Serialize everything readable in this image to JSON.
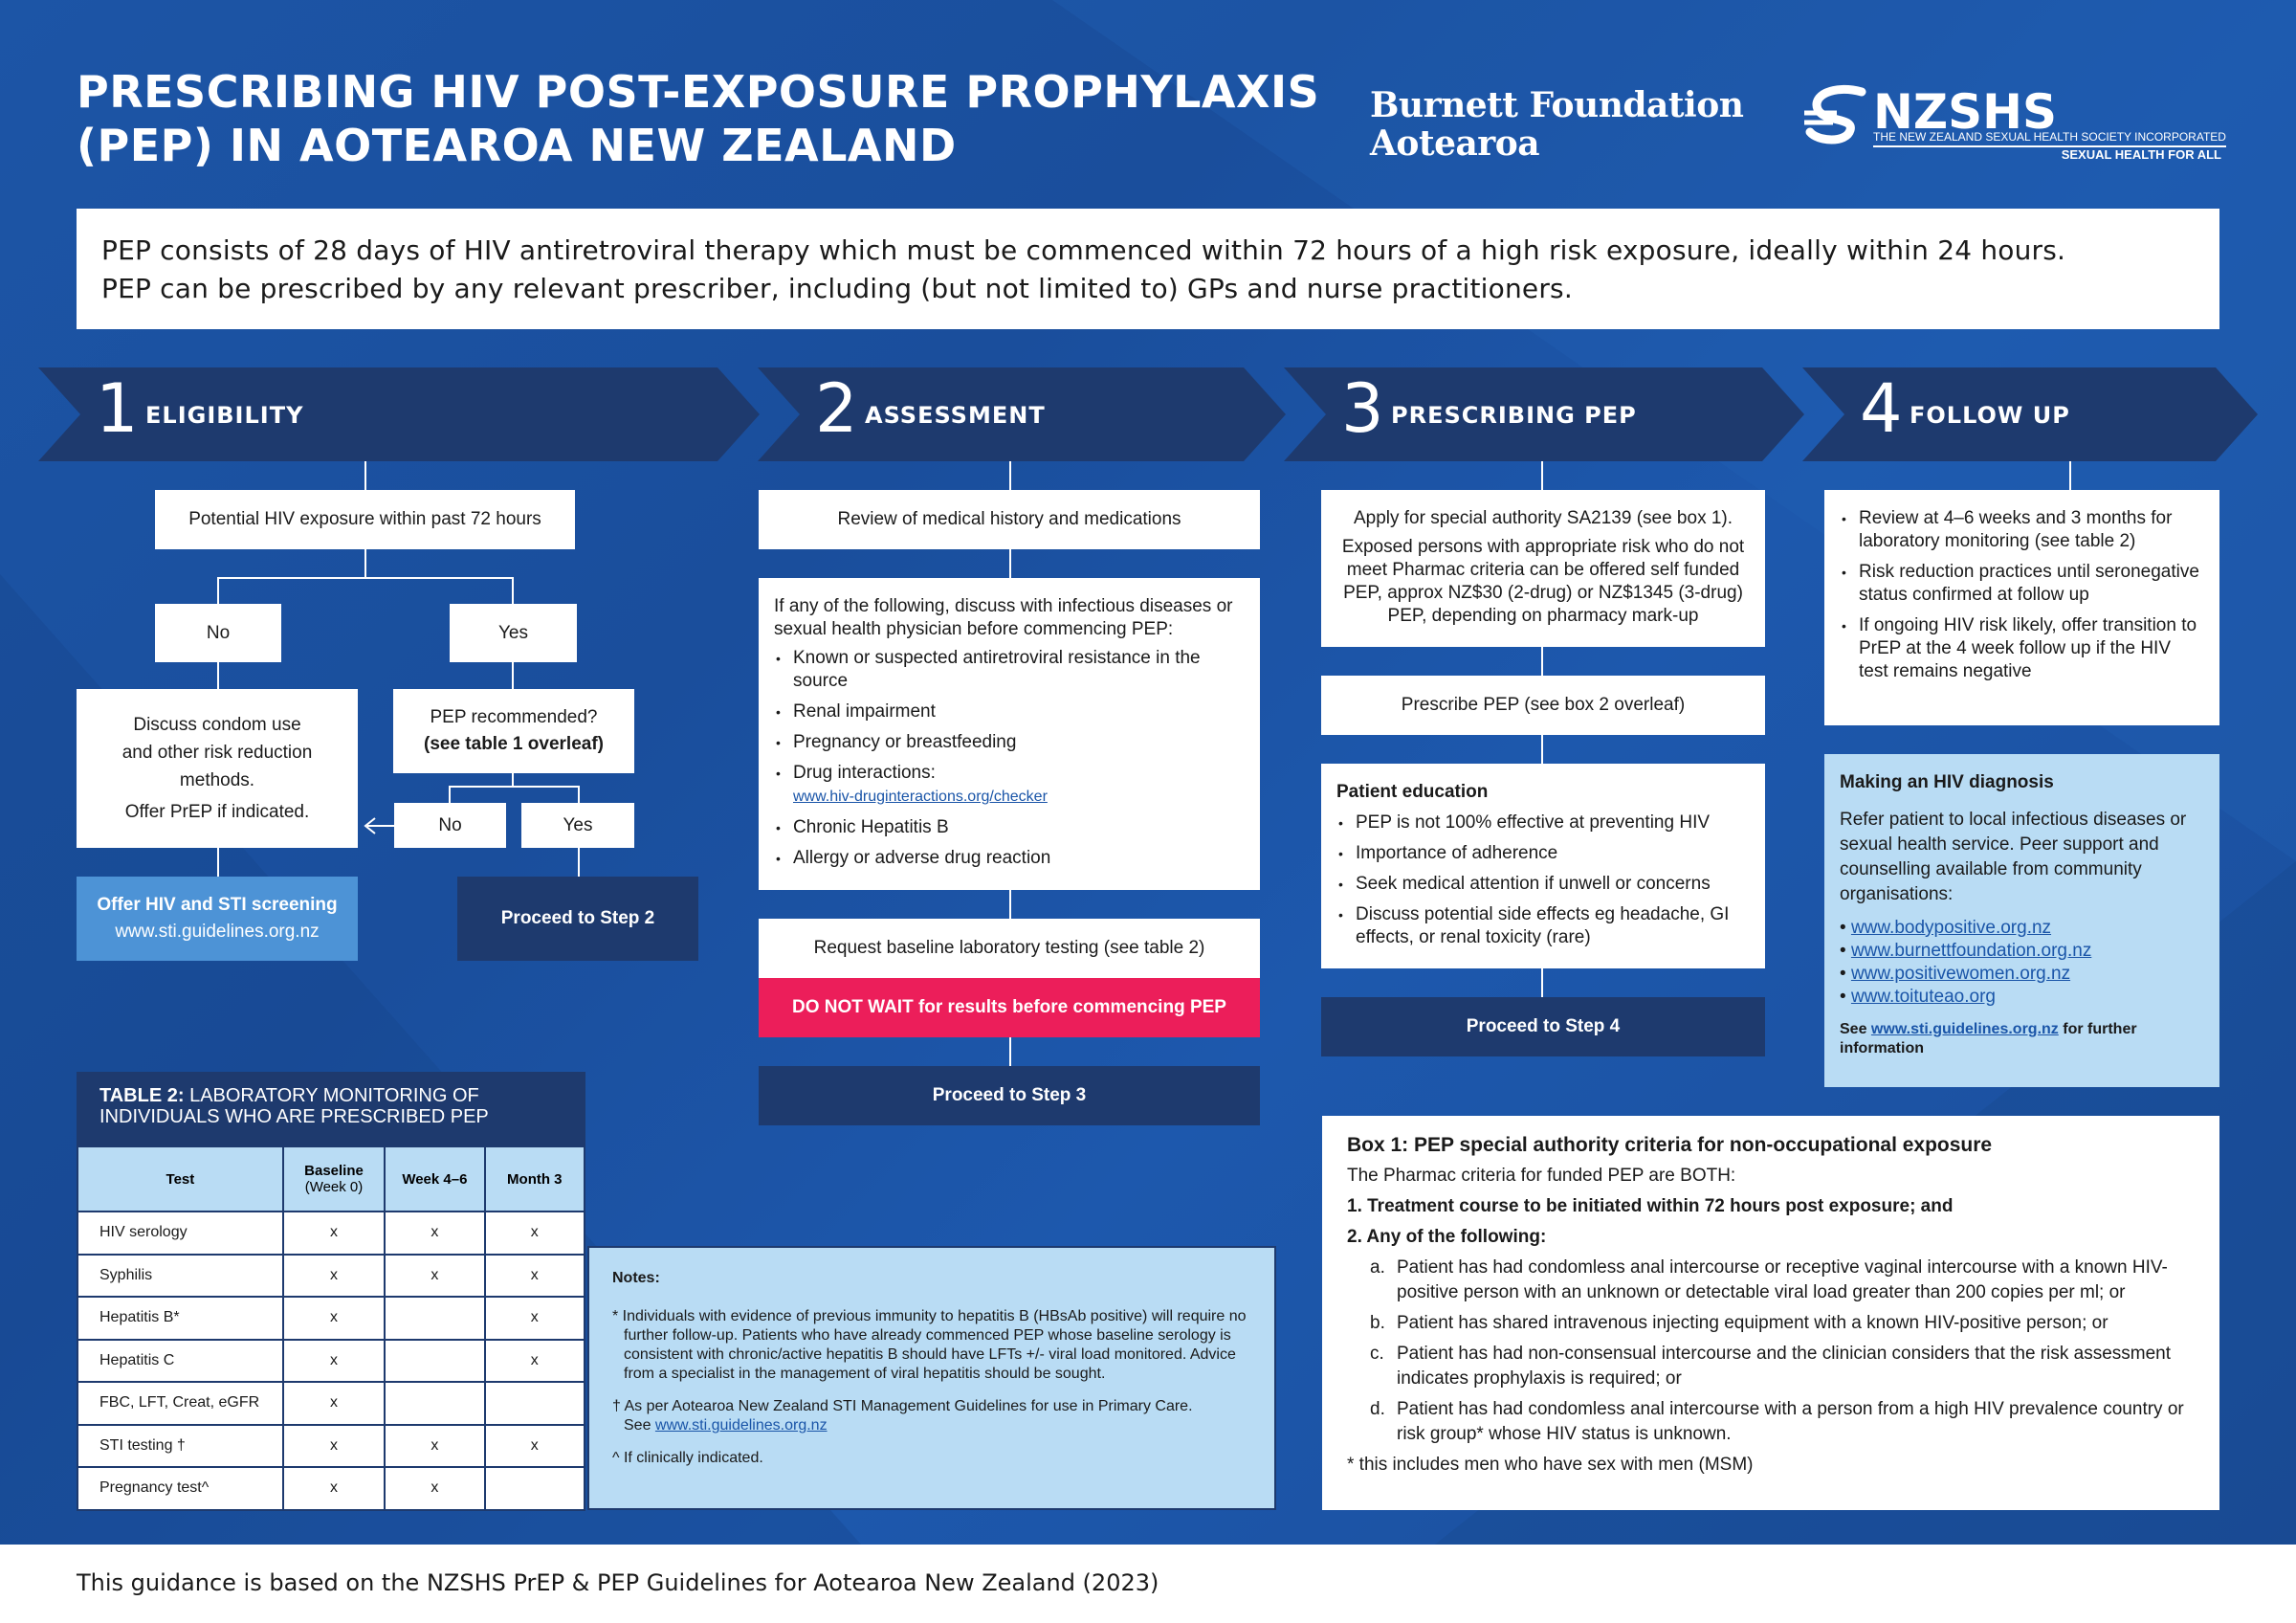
{
  "header": {
    "title_line1": "PRESCRIBING HIV POST-EXPOSURE PROPHYLAXIS",
    "title_line2": "(PEP) IN AOTEAROA NEW ZEALAND",
    "burnett_line1": "Burnett Foundation",
    "burnett_line2": "Aotearoa",
    "nzshs_name": "NZSHS",
    "nzshs_sub": "THE NEW ZEALAND SEXUAL HEALTH SOCIETY INCORPORATED",
    "nzshs_tag": "SEXUAL HEALTH FOR ALL"
  },
  "intro": {
    "line1": "PEP consists of 28 days of HIV antiretroviral therapy which must be commenced within 72 hours of a high risk exposure, ideally within 24 hours.",
    "line2": "PEP can be prescribed by any relevant prescriber, including (but not limited to) GPs and nurse practitioners."
  },
  "steps": [
    {
      "num": "1",
      "label": "ELIGIBILITY"
    },
    {
      "num": "2",
      "label": "ASSESSMENT"
    },
    {
      "num": "3",
      "label": "PRESCRIBING PEP"
    },
    {
      "num": "4",
      "label": "FOLLOW UP"
    }
  ],
  "eligibility": {
    "exposure": "Potential HIV exposure within past 72 hours",
    "no": "No",
    "yes": "Yes",
    "discuss_line1": "Discuss condom use",
    "discuss_line2": "and other risk reduction",
    "discuss_line3": "methods.",
    "discuss_line4": "Offer PrEP if indicated.",
    "pep_rec": "PEP recommended?",
    "pep_rec_bold": "(see table 1 overleaf)",
    "no2": "No",
    "yes2": "Yes",
    "screening": "Offer HIV and STI screening",
    "screening_url": "www.sti.guidelines.org.nz",
    "proceed": "Proceed to Step 2"
  },
  "assessment": {
    "review": "Review of medical history and medications",
    "discuss_intro": "If any of the following, discuss with infectious diseases or sexual health physician before commencing PEP:",
    "items": [
      "Known or suspected antiretroviral resistance in the source",
      "Renal impairment",
      "Pregnancy or breastfeeding",
      "Drug interactions:",
      "Chronic Hepatitis B",
      "Allergy or adverse drug reaction"
    ],
    "drug_link": "www.hiv-druginteractions.org/checker",
    "baseline": "Request baseline laboratory testing (see table 2)",
    "do_not_wait": "DO NOT WAIT for results before commencing PEP",
    "proceed": "Proceed to Step 3"
  },
  "prescribing": {
    "apply": "Apply for special authority SA2139 (see box 1).",
    "exposed": "Exposed persons with appropriate risk who do not meet Pharmac criteria can be offered self funded PEP, approx NZ$30 (2-drug) or NZ$1345 (3-drug) PEP, depending on pharmacy mark-up",
    "prescribe": "Prescribe PEP (see box 2 overleaf)",
    "education_title": "Patient education",
    "education_items": [
      "PEP is not 100% effective at preventing HIV",
      "Importance of adherence",
      "Seek medical attention if unwell or concerns",
      "Discuss potential side effects eg headache, GI effects, or renal toxicity (rare)"
    ],
    "proceed": "Proceed to Step 4"
  },
  "followup": {
    "items": [
      "Review at 4–6 weeks and 3 months for laboratory monitoring (see table 2)",
      "Risk reduction practices until seronegative status confirmed at follow up",
      "If ongoing HIV risk likely, offer transition to PrEP at the 4 week follow up if the HIV test remains negative"
    ],
    "diag_title": "Making an HIV diagnosis",
    "diag_text": "Refer patient to local infectious diseases or sexual health service. Peer support and counselling available from community organisations:",
    "links": [
      "www.bodypositive.org.nz",
      "www.burnettfoundation.org.nz",
      "www.positivewomen.org.nz",
      "www.toituteao.org"
    ],
    "see_prefix": "See ",
    "see_link": "www.sti.guidelines.org.nz",
    "see_suffix": " for further information"
  },
  "table2": {
    "title_bold": "TABLE 2:",
    "title_rest": " LABORATORY MONITORING OF INDIVIDUALS WHO ARE PRESCRIBED PEP",
    "headers": [
      "Test",
      "Baseline",
      "(Week 0)",
      "Week 4–6",
      "Month 3"
    ],
    "rows": [
      {
        "test": "HIV serology",
        "b": "x",
        "w": "x",
        "m": "x"
      },
      {
        "test": "Syphilis",
        "b": "x",
        "w": "x",
        "m": "x"
      },
      {
        "test": "Hepatitis B*",
        "b": "x",
        "w": "",
        "m": "x"
      },
      {
        "test": "Hepatitis C",
        "b": "x",
        "w": "",
        "m": "x"
      },
      {
        "test": "FBC, LFT, Creat, eGFR",
        "b": "x",
        "w": "",
        "m": ""
      },
      {
        "test": "STI testing †",
        "b": "x",
        "w": "x",
        "m": "x"
      },
      {
        "test": "Pregnancy test^",
        "b": "x",
        "w": "x",
        "m": ""
      }
    ]
  },
  "notes": {
    "title": "Notes:",
    "n1": "* Individuals with evidence of previous immunity to hepatitis B (HBsAb positive) will require no further follow-up. Patients who have already commenced PEP whose baseline serology is consistent with chronic/active hepatitis B should have LFTs +/- viral load monitored. Advice from a specialist in the management of viral hepatitis should be sought.",
    "n2": "† As per Aotearoa New Zealand STI Management Guidelines for use in Primary Care.",
    "n2_see": "See ",
    "n2_link": "www.sti.guidelines.org.nz",
    "n3": "^  If clinically indicated."
  },
  "box1": {
    "title": "Box 1: PEP special authority criteria for non-occupational exposure",
    "intro": "The Pharmac criteria for funded PEP are BOTH:",
    "c1": "1.  Treatment course to be initiated within 72 hours post exposure; and",
    "c2": "2.  Any of the following:",
    "subs": [
      {
        "k": "a.",
        "t": "Patient has had condomless anal intercourse or receptive vaginal intercourse with a known HIV-positive person with an unknown or detectable viral load greater than 200 copies per ml; or"
      },
      {
        "k": "b.",
        "t": "Patient has shared intravenous injecting equipment with a known HIV-positive person; or"
      },
      {
        "k": "c.",
        "t": "Patient has had non-consensual intercourse and the clinician considers that the risk assessment indicates prophylaxis is required; or"
      },
      {
        "k": "d.",
        "t": "Patient has had condomless anal intercourse with a person from a high HIV prevalence country or risk group* whose HIV status is unknown."
      }
    ],
    "footnote": "* this includes men who have sex with men (MSM)"
  },
  "footer": "This guidance is based on the NZSHS PrEP & PEP Guidelines for Aotearoa New Zealand (2023)"
}
